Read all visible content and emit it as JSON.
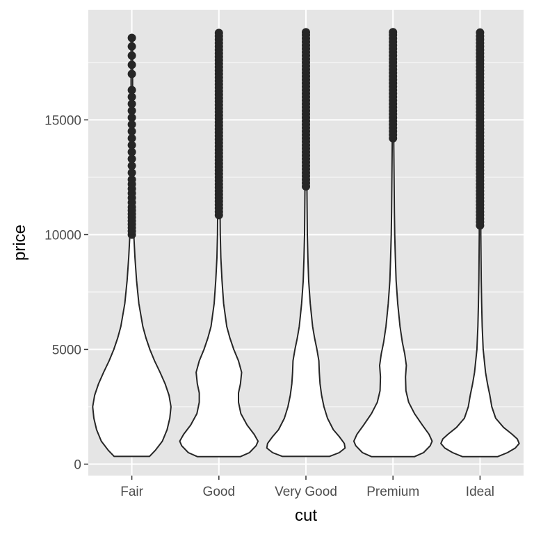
{
  "chart_data": {
    "type": "violin",
    "title": "",
    "xlabel": "cut",
    "ylabel": "price",
    "categories": [
      "Fair",
      "Good",
      "Very Good",
      "Premium",
      "Ideal"
    ],
    "y_ticks": [
      0,
      5000,
      10000,
      15000
    ],
    "y_tick_labels": [
      "0",
      "5000",
      "10000",
      "15000"
    ],
    "ylim": [
      -500,
      19800
    ],
    "grid": true,
    "colors": {
      "panel_background": "#e5e5e5",
      "grid": "#ffffff",
      "violin_fill": "#ffffff",
      "violin_stroke": "#262626",
      "outlier": "#262626"
    },
    "series": [
      {
        "category": "Fair",
        "min": 337,
        "max": 18574,
        "density": [
          [
            337,
            0.45
          ],
          [
            600,
            0.6
          ],
          [
            1000,
            0.78
          ],
          [
            1500,
            0.9
          ],
          [
            2000,
            0.97
          ],
          [
            2500,
            1.0
          ],
          [
            3000,
            0.95
          ],
          [
            3500,
            0.85
          ],
          [
            4000,
            0.72
          ],
          [
            4500,
            0.58
          ],
          [
            5000,
            0.46
          ],
          [
            5500,
            0.36
          ],
          [
            6000,
            0.28
          ],
          [
            7000,
            0.18
          ],
          [
            8000,
            0.12
          ],
          [
            9000,
            0.08
          ],
          [
            10000,
            0.05
          ],
          [
            11000,
            0.035
          ],
          [
            12000,
            0.03
          ],
          [
            14000,
            0.025
          ],
          [
            16000,
            0.02
          ],
          [
            18574,
            0.02
          ]
        ],
        "outliers": [
          10000,
          10150,
          10300,
          10450,
          10600,
          10750,
          10900,
          11050,
          11200,
          11400,
          11600,
          11800,
          12000,
          12200,
          12400,
          12700,
          13000,
          13300,
          13600,
          13900,
          14200,
          14500,
          14800,
          15100,
          15400,
          15700,
          16000,
          16300,
          17000,
          17400,
          17800,
          18200,
          18574
        ]
      },
      {
        "category": "Good",
        "min": 327,
        "max": 18788,
        "density": [
          [
            327,
            0.55
          ],
          [
            500,
            0.78
          ],
          [
            800,
            0.95
          ],
          [
            1000,
            1.0
          ],
          [
            1300,
            0.9
          ],
          [
            1700,
            0.72
          ],
          [
            2200,
            0.56
          ],
          [
            2700,
            0.5
          ],
          [
            3100,
            0.5
          ],
          [
            3500,
            0.55
          ],
          [
            4000,
            0.58
          ],
          [
            4500,
            0.5
          ],
          [
            5000,
            0.38
          ],
          [
            5500,
            0.28
          ],
          [
            6000,
            0.2
          ],
          [
            7000,
            0.12
          ],
          [
            8000,
            0.08
          ],
          [
            9000,
            0.05
          ],
          [
            10000,
            0.035
          ],
          [
            11000,
            0.03
          ],
          [
            13000,
            0.025
          ],
          [
            15000,
            0.022
          ],
          [
            18788,
            0.02
          ]
        ],
        "outliers": [
          10850,
          11000,
          11150,
          11300,
          11450,
          11600,
          11750,
          11900,
          12050,
          12200,
          12350,
          12500,
          12650,
          12800,
          12950,
          13100,
          13250,
          13400,
          13550,
          13700,
          13850,
          14000,
          14150,
          14300,
          14450,
          14600,
          14750,
          14900,
          15050,
          15200,
          15350,
          15500,
          15650,
          15800,
          15950,
          16100,
          16250,
          16400,
          16550,
          16700,
          16850,
          17000,
          17150,
          17300,
          17450,
          17600,
          17750,
          17900,
          18050,
          18200,
          18350,
          18500,
          18650,
          18788
        ]
      },
      {
        "category": "Very Good",
        "min": 336,
        "max": 18818,
        "density": [
          [
            336,
            0.6
          ],
          [
            500,
            0.85
          ],
          [
            700,
            1.0
          ],
          [
            900,
            0.98
          ],
          [
            1200,
            0.85
          ],
          [
            1500,
            0.7
          ],
          [
            2000,
            0.55
          ],
          [
            2500,
            0.46
          ],
          [
            3000,
            0.4
          ],
          [
            3500,
            0.36
          ],
          [
            4000,
            0.34
          ],
          [
            4500,
            0.33
          ],
          [
            5000,
            0.28
          ],
          [
            5500,
            0.22
          ],
          [
            6000,
            0.17
          ],
          [
            7000,
            0.11
          ],
          [
            8000,
            0.07
          ],
          [
            9000,
            0.05
          ],
          [
            10000,
            0.035
          ],
          [
            11000,
            0.03
          ],
          [
            12000,
            0.025
          ],
          [
            14000,
            0.02
          ],
          [
            18818,
            0.018
          ]
        ],
        "outliers": [
          12100,
          12250,
          12400,
          12550,
          12700,
          12850,
          13000,
          13150,
          13300,
          13450,
          13600,
          13750,
          13900,
          14050,
          14200,
          14350,
          14500,
          14650,
          14800,
          14950,
          15100,
          15250,
          15400,
          15550,
          15700,
          15850,
          16000,
          16150,
          16300,
          16450,
          16600,
          16750,
          16900,
          17050,
          17200,
          17350,
          17500,
          17650,
          17800,
          17950,
          18100,
          18250,
          18400,
          18550,
          18700,
          18818
        ]
      },
      {
        "category": "Premium",
        "min": 326,
        "max": 18823,
        "density": [
          [
            326,
            0.55
          ],
          [
            500,
            0.78
          ],
          [
            800,
            0.95
          ],
          [
            1000,
            1.0
          ],
          [
            1300,
            0.92
          ],
          [
            1700,
            0.75
          ],
          [
            2200,
            0.55
          ],
          [
            2700,
            0.4
          ],
          [
            3200,
            0.33
          ],
          [
            3800,
            0.32
          ],
          [
            4300,
            0.34
          ],
          [
            4800,
            0.3
          ],
          [
            5300,
            0.24
          ],
          [
            6000,
            0.18
          ],
          [
            7000,
            0.12
          ],
          [
            8000,
            0.08
          ],
          [
            9000,
            0.06
          ],
          [
            10000,
            0.045
          ],
          [
            11000,
            0.035
          ],
          [
            12000,
            0.03
          ],
          [
            13000,
            0.025
          ],
          [
            14000,
            0.02
          ],
          [
            18823,
            0.018
          ]
        ],
        "outliers": [
          14200,
          14350,
          14500,
          14650,
          14800,
          14950,
          15100,
          15250,
          15400,
          15550,
          15700,
          15850,
          16000,
          16150,
          16300,
          16450,
          16600,
          16750,
          16900,
          17050,
          17200,
          17350,
          17500,
          17650,
          17800,
          17950,
          18100,
          18250,
          18400,
          18550,
          18700,
          18823
        ]
      },
      {
        "category": "Ideal",
        "min": 326,
        "max": 18806,
        "density": [
          [
            326,
            0.45
          ],
          [
            500,
            0.7
          ],
          [
            700,
            0.9
          ],
          [
            900,
            1.0
          ],
          [
            1100,
            0.95
          ],
          [
            1300,
            0.82
          ],
          [
            1600,
            0.6
          ],
          [
            2000,
            0.4
          ],
          [
            2500,
            0.3
          ],
          [
            3000,
            0.25
          ],
          [
            3500,
            0.19
          ],
          [
            4000,
            0.14
          ],
          [
            4500,
            0.11
          ],
          [
            5000,
            0.08
          ],
          [
            6000,
            0.055
          ],
          [
            7000,
            0.04
          ],
          [
            8000,
            0.03
          ],
          [
            9000,
            0.025
          ],
          [
            10000,
            0.02
          ],
          [
            12000,
            0.018
          ],
          [
            15000,
            0.015
          ],
          [
            18806,
            0.015
          ]
        ],
        "outliers": [
          10400,
          10550,
          10700,
          10850,
          11000,
          11150,
          11300,
          11450,
          11600,
          11750,
          11900,
          12050,
          12200,
          12350,
          12500,
          12650,
          12800,
          12950,
          13100,
          13250,
          13400,
          13550,
          13700,
          13850,
          14000,
          14150,
          14300,
          14450,
          14600,
          14750,
          14900,
          15050,
          15200,
          15350,
          15500,
          15650,
          15800,
          15950,
          16100,
          16250,
          16400,
          16550,
          16700,
          16850,
          17000,
          17150,
          17300,
          17450,
          17600,
          17750,
          17900,
          18050,
          18200,
          18350,
          18500,
          18650,
          18806
        ]
      }
    ]
  }
}
